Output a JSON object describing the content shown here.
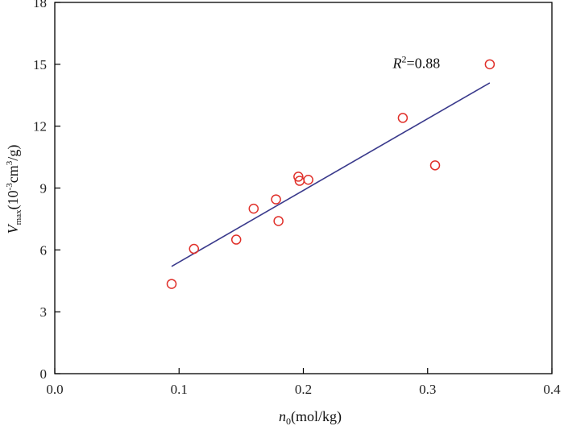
{
  "chart_data": {
    "type": "scatter",
    "xlim": [
      0.0,
      0.4
    ],
    "ylim": [
      0,
      18
    ],
    "x_ticks": [
      0.0,
      0.1,
      0.2,
      0.3,
      0.4
    ],
    "x_tick_labels": [
      "0.0",
      "0.1",
      "0.2",
      "0.3",
      "0.4"
    ],
    "y_ticks": [
      0,
      3,
      6,
      9,
      12,
      15,
      18
    ],
    "y_tick_labels": [
      "0",
      "3",
      "6",
      "9",
      "12",
      "15",
      "18"
    ],
    "xlabel": {
      "main": "n",
      "sub": "0",
      "unit": "(mol/kg)"
    },
    "ylabel": {
      "main": "V",
      "sub": "max",
      "unit_open": "(10",
      "exp1": "-3",
      "unit_mid": "cm",
      "exp2": "3",
      "unit_close": "/g)"
    },
    "annotation": {
      "main": "R",
      "exp": "2",
      "rest": "=0.88",
      "x": 0.272,
      "y": 15.05
    },
    "points": {
      "x": [
        0.094,
        0.112,
        0.146,
        0.16,
        0.178,
        0.18,
        0.196,
        0.197,
        0.204,
        0.28,
        0.306,
        0.35
      ],
      "y": [
        4.35,
        6.05,
        6.5,
        8.0,
        8.45,
        7.4,
        9.55,
        9.35,
        9.4,
        12.4,
        10.1,
        15.0
      ]
    },
    "fit_line": {
      "x": [
        0.094,
        0.35
      ],
      "y": [
        5.2,
        14.1
      ]
    },
    "grid": false,
    "colors": {
      "points": "#e0302a",
      "fit_line": "#3a3a8c",
      "axes": "#000000"
    }
  }
}
